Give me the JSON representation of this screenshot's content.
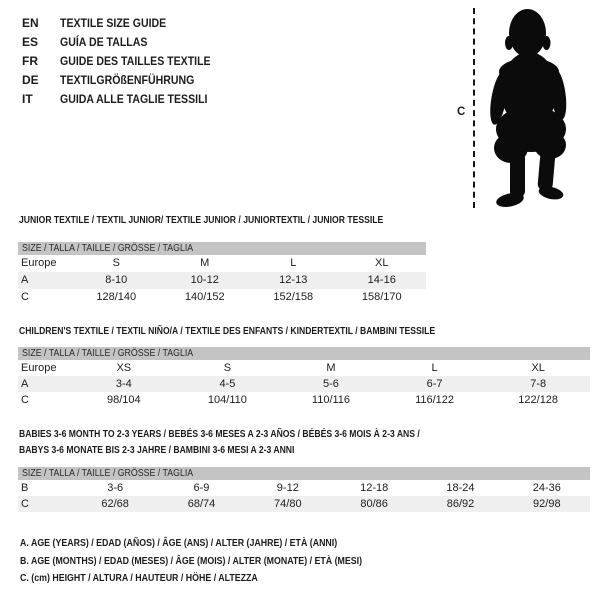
{
  "header": {
    "languages": [
      {
        "code": "EN",
        "title": "TEXTILE SIZE GUIDE"
      },
      {
        "code": "ES",
        "title": "GUÍA DE TALLAS"
      },
      {
        "code": "FR",
        "title": "GUIDE DES TAILLES TEXTILE"
      },
      {
        "code": "DE",
        "title": "TEXTILGRÖßENFÜHRUNG"
      },
      {
        "code": "IT",
        "title": "GUIDA ALLE TAGLIE TESSILI"
      }
    ]
  },
  "figure": {
    "height_label": "C",
    "image": "standing-toddler-silhouette"
  },
  "tables": [
    {
      "title": "JUNIOR TEXTILE / TEXTIL JUNIOR/ TEXTILE JUNIOR / JUNIORTEXTIL / JUNIOR TESSILE",
      "size_header": "SIZE / TALLA / TAILLE / GRÖSSE / TAGLIA",
      "rows": [
        {
          "label": "Europe",
          "values": [
            "S",
            "M",
            "L",
            "XL"
          ]
        },
        {
          "label": "A",
          "values": [
            "8-10",
            "10-12",
            "12-13",
            "14-16"
          ]
        },
        {
          "label": "C",
          "values": [
            "128/140",
            "140/152",
            "152/158",
            "158/170"
          ]
        }
      ]
    },
    {
      "title": "CHILDREN'S TEXTILE / TEXTIL NIÑO/A / TEXTILE DES ENFANTS / KINDERTEXTIL / BAMBINI TESSILE",
      "size_header": "SIZE / TALLA / TAILLE / GRÖSSE / TAGLIA",
      "rows": [
        {
          "label": "Europe",
          "values": [
            "XS",
            "S",
            "M",
            "L",
            "XL"
          ]
        },
        {
          "label": "A",
          "values": [
            "3-4",
            "4-5",
            "5-6",
            "6-7",
            "7-8"
          ]
        },
        {
          "label": "C",
          "values": [
            "98/104",
            "104/110",
            "110/116",
            "116/122",
            "122/128"
          ]
        }
      ]
    },
    {
      "title": "BABIES 3-6 MONTH TO 2-3 YEARS / BEBÉS 3-6 MESES A 2-3 AÑOS / BÉBÉS 3-6 MOIS À 2-3 ANS /\nBABYS 3-6 MONATE BIS 2-3 JAHRE / BAMBINI 3-6 MESI A 2-3 ANNI",
      "size_header": "SIZE / TALLA / TAILLE / GRÖSSE / TAGLIA",
      "rows": [
        {
          "label": "B",
          "values": [
            "3-6",
            "6-9",
            "9-12",
            "12-18",
            "18-24",
            "24-36"
          ]
        },
        {
          "label": "C",
          "values": [
            "62/68",
            "68/74",
            "74/80",
            "80/86",
            "86/92",
            "92/98"
          ]
        }
      ]
    }
  ],
  "footnotes": [
    "A. AGE (YEARS) / EDAD (AÑOS) / ÂGE (ANS) / ALTER (JAHRE) / ETÀ (ANNI)",
    "B. AGE (MONTHS) / EDAD (MESES) / ÂGE (MOIS) / ALTER (MONATE) / ETÀ (MESI)",
    "C. (cm) HEIGHT / ALTURA / HAUTEUR / HÖHE / ALTEZZA"
  ],
  "colors": {
    "bar_gray": "#c4c4c4",
    "stripe_gray": "#efefef",
    "text": "#1c1c1c",
    "silhouette": "#0b0b0b"
  }
}
